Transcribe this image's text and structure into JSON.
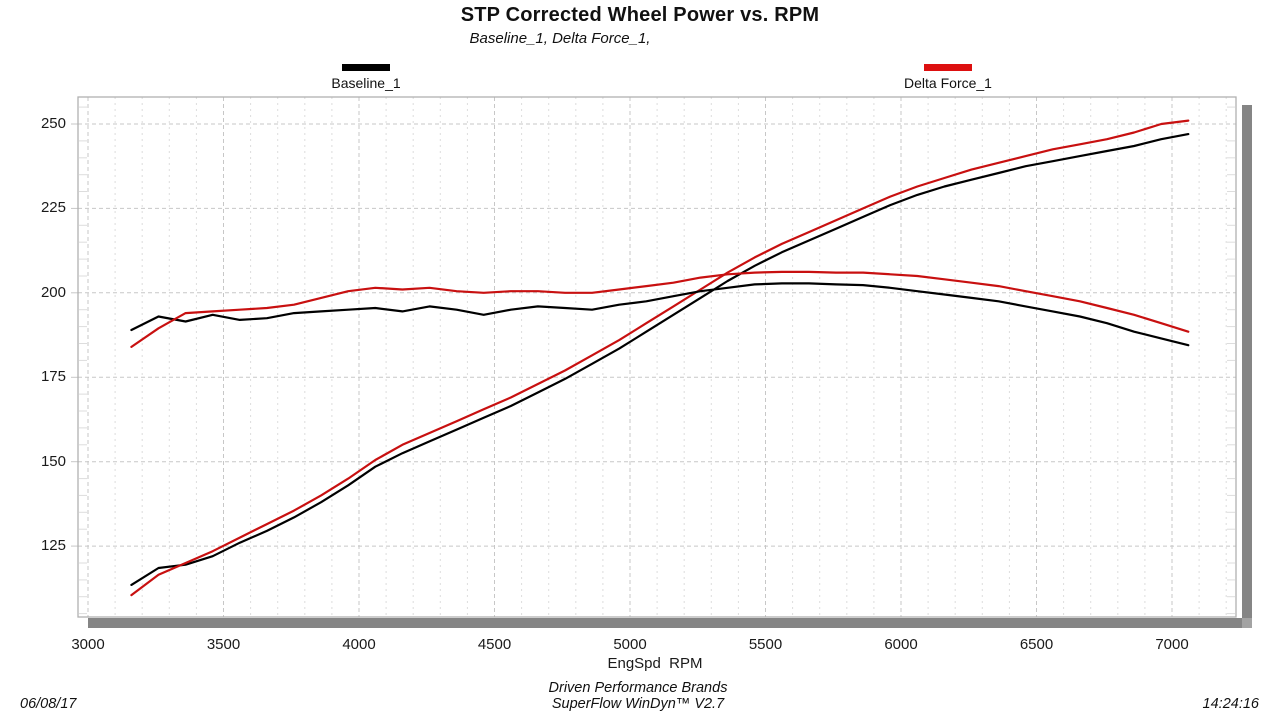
{
  "title": "STP Corrected Wheel Power vs. RPM",
  "subtitle": "Baseline_1, Delta Force_1,",
  "legend": [
    {
      "label": "Baseline_1",
      "color": "#000000"
    },
    {
      "label": "Delta Force_1",
      "color": "#dd0f0f"
    }
  ],
  "footer": {
    "brand_line1": "Driven Performance Brands",
    "brand_line2": "SuperFlow WinDyn™ V2.7",
    "date": "06/08/17",
    "time": "14:24:16"
  },
  "colors": {
    "baseline": "#000000",
    "delta": "#c81010",
    "grid_major": "#c7c7c7",
    "grid_minor": "#dddddd",
    "frame": "#b0b0b0",
    "scrollbar": "#858585",
    "text": "#111111"
  },
  "chart_data": {
    "type": "line",
    "title": "STP Corrected Wheel Power vs. RPM",
    "subtitle": "Baseline_1, Delta Force_1,",
    "xlabel": "EngSpd  RPM",
    "ylabel": "",
    "x_range": [
      2963,
      7236
    ],
    "y_range": [
      104,
      258
    ],
    "x_major_ticks": [
      3000,
      3500,
      4000,
      4500,
      5000,
      5500,
      6000,
      6500,
      7000
    ],
    "x_minor_step": 100,
    "y_major_ticks": [
      125,
      150,
      175,
      200,
      225,
      250
    ],
    "y_minor_step": 5,
    "grid": "dashed",
    "legend_position": "top",
    "x": [
      3160,
      3260,
      3360,
      3460,
      3560,
      3660,
      3760,
      3860,
      3960,
      4060,
      4160,
      4260,
      4360,
      4460,
      4560,
      4660,
      4760,
      4860,
      4960,
      5060,
      5160,
      5260,
      5360,
      5460,
      5560,
      5660,
      5760,
      5860,
      5960,
      6060,
      6160,
      6260,
      6360,
      6460,
      6560,
      6660,
      6760,
      6860,
      6960,
      7060
    ],
    "series": [
      {
        "name": "Baseline_1 (power)",
        "run": "Baseline_1",
        "color": "#000000",
        "values": [
          113.5,
          118.5,
          119.5,
          122,
          126,
          129.5,
          133.5,
          138,
          143,
          148.5,
          152.5,
          156,
          159.5,
          163,
          166.5,
          170.5,
          174.5,
          179,
          183.5,
          188.5,
          193.5,
          198.5,
          203.5,
          208,
          212,
          215.5,
          219,
          222.5,
          226,
          229,
          231.5,
          233.5,
          235.5,
          237.5,
          239,
          240.5,
          242,
          243.5,
          245.5,
          247
        ]
      },
      {
        "name": "Delta Force_1 (power)",
        "run": "Delta Force_1",
        "color": "#c81010",
        "values": [
          110.5,
          116.5,
          120,
          123.5,
          127.5,
          131.5,
          135.5,
          140,
          145,
          150.5,
          155,
          158.5,
          162,
          165.5,
          169,
          173,
          177,
          181.5,
          186,
          191,
          196,
          201,
          206,
          210.5,
          214.5,
          218,
          221.5,
          225,
          228.5,
          231.5,
          234,
          236.5,
          238.5,
          240.5,
          242.5,
          244,
          245.5,
          247.5,
          250,
          251
        ]
      },
      {
        "name": "Baseline_1 (torque)",
        "run": "Baseline_1",
        "color": "#000000",
        "values": [
          189,
          193,
          191.5,
          193.5,
          192,
          192.5,
          194,
          194.5,
          195,
          195.5,
          194.5,
          196,
          195,
          193.5,
          195,
          196,
          195.5,
          195,
          196.5,
          197.5,
          199,
          200.5,
          201.5,
          202.5,
          202.8,
          202.8,
          202.5,
          202.3,
          201.5,
          200.5,
          199.5,
          198.5,
          197.5,
          196,
          194.5,
          193,
          191,
          188.5,
          186.5,
          184.5
        ]
      },
      {
        "name": "Delta Force_1 (torque)",
        "run": "Delta Force_1",
        "color": "#c81010",
        "values": [
          184,
          189.5,
          194,
          194.5,
          195,
          195.5,
          196.5,
          198.5,
          200.5,
          201.5,
          201,
          201.5,
          200.5,
          200,
          200.5,
          200.5,
          200,
          200,
          201,
          202,
          203,
          204.5,
          205.5,
          206,
          206.2,
          206.2,
          206,
          206,
          205.5,
          205,
          204,
          203,
          202,
          200.5,
          199,
          197.5,
          195.5,
          193.5,
          191,
          188.5
        ]
      }
    ]
  }
}
